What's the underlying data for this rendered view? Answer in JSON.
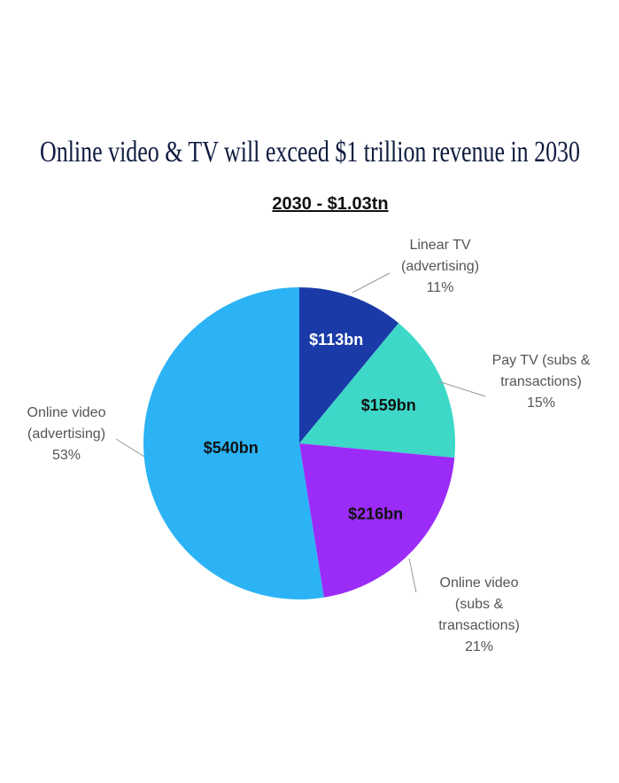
{
  "chart_data": {
    "type": "pie",
    "title": "Online video & TV will exceed $1 trillion revenue in 2030",
    "subtitle": "2030 - $1.03tn",
    "categories": [
      "Linear TV (advertising)",
      "Pay TV (subs & transactions)",
      "Online video (subs & transactions)",
      "Online video (advertising)"
    ],
    "values": [
      113,
      159,
      216,
      540
    ],
    "value_labels": [
      "$113bn",
      "$159bn",
      "$216bn",
      "$540bn"
    ],
    "percent_labels": [
      "11%",
      "15%",
      "21%",
      "53%"
    ],
    "colors": [
      "#1a3aa8",
      "#3dd8c8",
      "#9b2cf7",
      "#2bb3f5"
    ]
  }
}
